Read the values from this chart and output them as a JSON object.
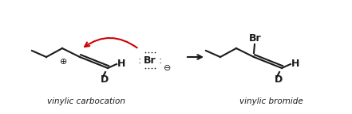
{
  "bg_color": "#ffffff",
  "line_color": "#1a1a1a",
  "red_color": "#cc0000",
  "fig_width": 4.41,
  "fig_height": 1.44,
  "label_vinylic_carbocation": "vinylic carbocation",
  "label_vinylic_bromide": "vinylic bromide",
  "label_D": "D",
  "label_H": "H",
  "label_Br_bond": "Br",
  "label_Br_ion": "Br",
  "label_plus": "⊕",
  "label_minus": "⊖"
}
